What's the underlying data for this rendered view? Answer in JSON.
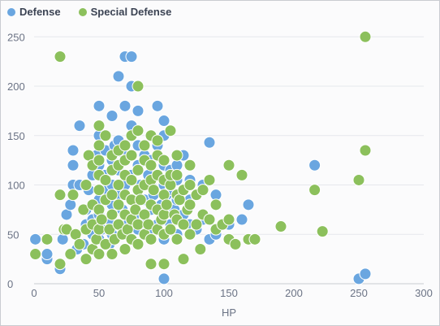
{
  "chart_data": {
    "type": "scatter",
    "title": "",
    "xlabel": "HP",
    "ylabel": "",
    "xlim": [
      0,
      300
    ],
    "ylim": [
      0,
      270
    ],
    "xticks": [
      0,
      50,
      100,
      150,
      200,
      250,
      300
    ],
    "yticks": [
      0,
      50,
      100,
      150,
      200,
      250
    ],
    "grid": "horizontal",
    "legend_position": "top-left",
    "series": [
      {
        "name": "Defense",
        "color": "#6aa6e0",
        "points": [
          [
            1,
            45
          ],
          [
            10,
            25
          ],
          [
            10,
            30
          ],
          [
            20,
            15
          ],
          [
            20,
            90
          ],
          [
            22,
            45
          ],
          [
            25,
            70
          ],
          [
            28,
            80
          ],
          [
            30,
            100
          ],
          [
            30,
            120
          ],
          [
            30,
            135
          ],
          [
            33,
            35
          ],
          [
            35,
            100
          ],
          [
            35,
            160
          ],
          [
            38,
            40
          ],
          [
            40,
            60
          ],
          [
            40,
            75
          ],
          [
            42,
            95
          ],
          [
            45,
            50
          ],
          [
            45,
            65
          ],
          [
            45,
            110
          ],
          [
            48,
            130
          ],
          [
            50,
            45
          ],
          [
            50,
            70
          ],
          [
            50,
            85
          ],
          [
            50,
            120
          ],
          [
            50,
            150
          ],
          [
            50,
            180
          ],
          [
            52,
            55
          ],
          [
            55,
            95
          ],
          [
            55,
            110
          ],
          [
            55,
            135
          ],
          [
            58,
            40
          ],
          [
            58,
            65
          ],
          [
            60,
            50
          ],
          [
            60,
            80
          ],
          [
            60,
            100
          ],
          [
            60,
            125
          ],
          [
            60,
            170
          ],
          [
            62,
            140
          ],
          [
            65,
            60
          ],
          [
            65,
            90
          ],
          [
            65,
            115
          ],
          [
            65,
            145
          ],
          [
            65,
            210
          ],
          [
            68,
            75
          ],
          [
            70,
            50
          ],
          [
            70,
            100
          ],
          [
            70,
            130
          ],
          [
            70,
            180
          ],
          [
            70,
            230
          ],
          [
            72,
            60
          ],
          [
            75,
            85
          ],
          [
            75,
            110
          ],
          [
            75,
            160
          ],
          [
            75,
            200
          ],
          [
            75,
            230
          ],
          [
            78,
            70
          ],
          [
            80,
            55
          ],
          [
            80,
            95
          ],
          [
            80,
            120
          ],
          [
            80,
            140
          ],
          [
            80,
            175
          ],
          [
            82,
            100
          ],
          [
            85,
            65
          ],
          [
            85,
            85
          ],
          [
            85,
            130
          ],
          [
            88,
            110
          ],
          [
            90,
            50
          ],
          [
            90,
            75
          ],
          [
            90,
            100
          ],
          [
            90,
            125
          ],
          [
            90,
            150
          ],
          [
            92,
            90
          ],
          [
            95,
            60
          ],
          [
            95,
            110
          ],
          [
            95,
            140
          ],
          [
            95,
            180
          ],
          [
            98,
            80
          ],
          [
            100,
            45
          ],
          [
            100,
            70
          ],
          [
            100,
            100
          ],
          [
            100,
            120
          ],
          [
            100,
            150
          ],
          [
            100,
            165
          ],
          [
            100,
            5
          ],
          [
            102,
            90
          ],
          [
            105,
            60
          ],
          [
            105,
            95
          ],
          [
            105,
            115
          ],
          [
            108,
            75
          ],
          [
            110,
            50
          ],
          [
            110,
            85
          ],
          [
            110,
            105
          ],
          [
            110,
            120
          ],
          [
            115,
            70
          ],
          [
            115,
            95
          ],
          [
            115,
            130
          ],
          [
            120,
            60
          ],
          [
            120,
            85
          ],
          [
            120,
            105
          ],
          [
            125,
            55
          ],
          [
            125,
            90
          ],
          [
            130,
            65
          ],
          [
            130,
            100
          ],
          [
            135,
            45
          ],
          [
            135,
            143
          ],
          [
            140,
            50
          ],
          [
            140,
            90
          ],
          [
            150,
            45
          ],
          [
            150,
            60
          ],
          [
            160,
            65
          ],
          [
            165,
            80
          ],
          [
            216,
            120
          ],
          [
            250,
            5
          ],
          [
            255,
            10
          ]
        ]
      },
      {
        "name": "Special Defense",
        "color": "#8cc05c",
        "points": [
          [
            1,
            30
          ],
          [
            10,
            45
          ],
          [
            20,
            20
          ],
          [
            20,
            90
          ],
          [
            20,
            230
          ],
          [
            23,
            55
          ],
          [
            25,
            55
          ],
          [
            28,
            30
          ],
          [
            30,
            90
          ],
          [
            32,
            50
          ],
          [
            35,
            40
          ],
          [
            38,
            75
          ],
          [
            40,
            25
          ],
          [
            40,
            55
          ],
          [
            40,
            100
          ],
          [
            42,
            130
          ],
          [
            45,
            35
          ],
          [
            45,
            60
          ],
          [
            45,
            80
          ],
          [
            45,
            120
          ],
          [
            48,
            45
          ],
          [
            50,
            30
          ],
          [
            50,
            55
          ],
          [
            50,
            75
          ],
          [
            50,
            95
          ],
          [
            50,
            110
          ],
          [
            50,
            125
          ],
          [
            50,
            140
          ],
          [
            50,
            160
          ],
          [
            52,
            65
          ],
          [
            55,
            40
          ],
          [
            55,
            85
          ],
          [
            55,
            105
          ],
          [
            55,
            150
          ],
          [
            58,
            55
          ],
          [
            60,
            30
          ],
          [
            60,
            70
          ],
          [
            60,
            90
          ],
          [
            60,
            115
          ],
          [
            60,
            130
          ],
          [
            62,
            45
          ],
          [
            65,
            60
          ],
          [
            65,
            80
          ],
          [
            65,
            100
          ],
          [
            65,
            120
          ],
          [
            65,
            135
          ],
          [
            68,
            50
          ],
          [
            70,
            35
          ],
          [
            70,
            70
          ],
          [
            70,
            90
          ],
          [
            70,
            110
          ],
          [
            70,
            125
          ],
          [
            70,
            140
          ],
          [
            72,
            55
          ],
          [
            75,
            45
          ],
          [
            75,
            65
          ],
          [
            75,
            85
          ],
          [
            75,
            105
          ],
          [
            75,
            130
          ],
          [
            75,
            150
          ],
          [
            78,
            75
          ],
          [
            80,
            40
          ],
          [
            80,
            60
          ],
          [
            80,
            95
          ],
          [
            80,
            115
          ],
          [
            80,
            155
          ],
          [
            80,
            200
          ],
          [
            82,
            85
          ],
          [
            85,
            50
          ],
          [
            85,
            70
          ],
          [
            85,
            100
          ],
          [
            85,
            125
          ],
          [
            85,
            140
          ],
          [
            88,
            60
          ],
          [
            90,
            45
          ],
          [
            90,
            80
          ],
          [
            90,
            105
          ],
          [
            90,
            120
          ],
          [
            90,
            150
          ],
          [
            90,
            20
          ],
          [
            92,
            95
          ],
          [
            95,
            55
          ],
          [
            95,
            75
          ],
          [
            95,
            110
          ],
          [
            95,
            130
          ],
          [
            95,
            145
          ],
          [
            98,
            65
          ],
          [
            100,
            50
          ],
          [
            100,
            70
          ],
          [
            100,
            90
          ],
          [
            100,
            105
          ],
          [
            100,
            125
          ],
          [
            100,
            20
          ],
          [
            102,
            80
          ],
          [
            105,
            55
          ],
          [
            105,
            100
          ],
          [
            105,
            110
          ],
          [
            105,
            155
          ],
          [
            108,
            70
          ],
          [
            110,
            45
          ],
          [
            110,
            65
          ],
          [
            110,
            90
          ],
          [
            110,
            110
          ],
          [
            110,
            130
          ],
          [
            112,
            85
          ],
          [
            115,
            25
          ],
          [
            115,
            60
          ],
          [
            115,
            95
          ],
          [
            118,
            75
          ],
          [
            120,
            50
          ],
          [
            120,
            80
          ],
          [
            120,
            100
          ],
          [
            120,
            120
          ],
          [
            125,
            60
          ],
          [
            125,
            90
          ],
          [
            128,
            35
          ],
          [
            130,
            70
          ],
          [
            130,
            95
          ],
          [
            135,
            65
          ],
          [
            135,
            105
          ],
          [
            140,
            55
          ],
          [
            140,
            80
          ],
          [
            145,
            60
          ],
          [
            150,
            45
          ],
          [
            150,
            65
          ],
          [
            150,
            120
          ],
          [
            155,
            40
          ],
          [
            160,
            110
          ],
          [
            165,
            45
          ],
          [
            170,
            45
          ],
          [
            190,
            58
          ],
          [
            216,
            95
          ],
          [
            222,
            53
          ],
          [
            250,
            105
          ],
          [
            255,
            135
          ],
          [
            255,
            250
          ]
        ]
      }
    ]
  }
}
